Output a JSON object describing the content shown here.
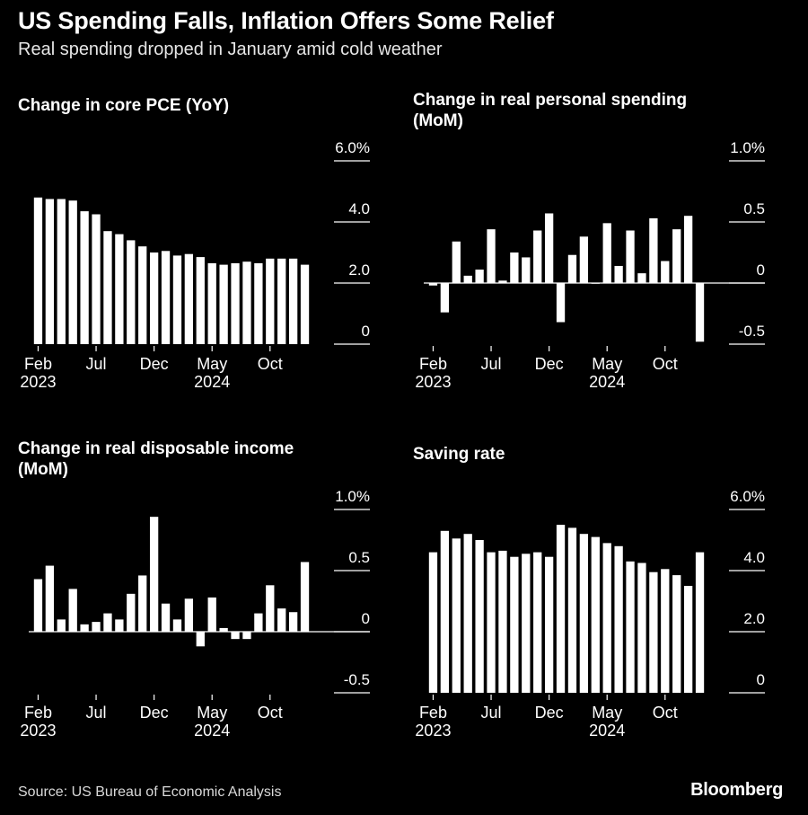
{
  "header": {
    "title": "US Spending Falls, Inflation Offers Some Relief",
    "subtitle": "Real spending dropped in January amid cold weather"
  },
  "footer": {
    "source": "Source: US Bureau of Economic Analysis",
    "brand": "Bloomberg"
  },
  "colors": {
    "background": "#000000",
    "bar": "#ffffff",
    "text": "#ffffff"
  },
  "chart_data": [
    {
      "type": "bar",
      "title": "Change in core PCE (YoY)",
      "x": [
        "2023-02",
        "2023-03",
        "2023-04",
        "2023-05",
        "2023-06",
        "2023-07",
        "2023-08",
        "2023-09",
        "2023-10",
        "2023-11",
        "2023-12",
        "2024-01",
        "2024-02",
        "2024-03",
        "2024-04",
        "2024-05",
        "2024-06",
        "2024-07",
        "2024-08",
        "2024-09",
        "2024-10",
        "2024-11",
        "2024-12",
        "2025-01"
      ],
      "values": [
        4.8,
        4.75,
        4.75,
        4.7,
        4.35,
        4.25,
        3.7,
        3.6,
        3.4,
        3.2,
        3.0,
        3.05,
        2.9,
        2.95,
        2.85,
        2.65,
        2.6,
        2.65,
        2.7,
        2.65,
        2.8,
        2.8,
        2.8,
        2.6
      ],
      "ylim": [
        0,
        6.0
      ],
      "y_ticks": [
        "6.0%",
        "4.0",
        "2.0",
        "0"
      ],
      "x_ticks": [
        {
          "month": "Feb",
          "year": "2023"
        },
        {
          "month": "Jul",
          "year": ""
        },
        {
          "month": "Dec",
          "year": ""
        },
        {
          "month": "May",
          "year": "2024"
        },
        {
          "month": "Oct",
          "year": ""
        }
      ]
    },
    {
      "type": "bar",
      "title": "Change in real personal spending (MoM)",
      "x": [
        "2023-02",
        "2023-03",
        "2023-04",
        "2023-05",
        "2023-06",
        "2023-07",
        "2023-08",
        "2023-09",
        "2023-10",
        "2023-11",
        "2023-12",
        "2024-01",
        "2024-02",
        "2024-03",
        "2024-04",
        "2024-05",
        "2024-06",
        "2024-07",
        "2024-08",
        "2024-09",
        "2024-10",
        "2024-11",
        "2024-12",
        "2025-01"
      ],
      "values": [
        -0.02,
        -0.24,
        0.34,
        0.06,
        0.11,
        0.44,
        0.02,
        0.25,
        0.21,
        0.43,
        0.57,
        -0.32,
        0.23,
        0.38,
        0.0,
        0.49,
        0.14,
        0.43,
        0.08,
        0.53,
        0.18,
        0.44,
        0.55,
        -0.48
      ],
      "ylim": [
        -0.5,
        1.0
      ],
      "y_ticks": [
        "1.0%",
        "0.5",
        "0",
        "-0.5"
      ],
      "x_ticks": [
        {
          "month": "Feb",
          "year": "2023"
        },
        {
          "month": "Jul",
          "year": ""
        },
        {
          "month": "Dec",
          "year": ""
        },
        {
          "month": "May",
          "year": "2024"
        },
        {
          "month": "Oct",
          "year": ""
        }
      ]
    },
    {
      "type": "bar",
      "title": "Change in real disposable income (MoM)",
      "x": [
        "2023-02",
        "2023-03",
        "2023-04",
        "2023-05",
        "2023-06",
        "2023-07",
        "2023-08",
        "2023-09",
        "2023-10",
        "2023-11",
        "2023-12",
        "2024-01",
        "2024-02",
        "2024-03",
        "2024-04",
        "2024-05",
        "2024-06",
        "2024-07",
        "2024-08",
        "2024-09",
        "2024-10",
        "2024-11",
        "2024-12",
        "2025-01"
      ],
      "values": [
        0.43,
        0.54,
        0.1,
        0.35,
        0.06,
        0.08,
        0.15,
        0.1,
        0.31,
        0.46,
        0.94,
        0.23,
        0.1,
        0.27,
        -0.12,
        0.28,
        0.03,
        -0.06,
        -0.06,
        0.15,
        0.38,
        0.19,
        0.16,
        0.57
      ],
      "ylim": [
        -0.5,
        1.0
      ],
      "y_ticks": [
        "1.0%",
        "0.5",
        "0",
        "-0.5"
      ],
      "x_ticks": [
        {
          "month": "Feb",
          "year": "2023"
        },
        {
          "month": "Jul",
          "year": ""
        },
        {
          "month": "Dec",
          "year": ""
        },
        {
          "month": "May",
          "year": "2024"
        },
        {
          "month": "Oct",
          "year": ""
        }
      ]
    },
    {
      "type": "bar",
      "title": "Saving rate",
      "x": [
        "2023-02",
        "2023-03",
        "2023-04",
        "2023-05",
        "2023-06",
        "2023-07",
        "2023-08",
        "2023-09",
        "2023-10",
        "2023-11",
        "2023-12",
        "2024-01",
        "2024-02",
        "2024-03",
        "2024-04",
        "2024-05",
        "2024-06",
        "2024-07",
        "2024-08",
        "2024-09",
        "2024-10",
        "2024-11",
        "2024-12",
        "2025-01"
      ],
      "values": [
        4.6,
        5.3,
        5.05,
        5.2,
        5.0,
        4.6,
        4.65,
        4.45,
        4.55,
        4.6,
        4.45,
        5.5,
        5.4,
        5.2,
        5.1,
        4.9,
        4.8,
        4.3,
        4.25,
        3.95,
        4.05,
        3.85,
        3.5,
        4.6
      ],
      "ylim": [
        0,
        6.0
      ],
      "y_ticks": [
        "6.0%",
        "4.0",
        "2.0",
        "0"
      ],
      "x_ticks": [
        {
          "month": "Feb",
          "year": "2023"
        },
        {
          "month": "Jul",
          "year": ""
        },
        {
          "month": "Dec",
          "year": ""
        },
        {
          "month": "May",
          "year": "2024"
        },
        {
          "month": "Oct",
          "year": ""
        }
      ]
    }
  ]
}
